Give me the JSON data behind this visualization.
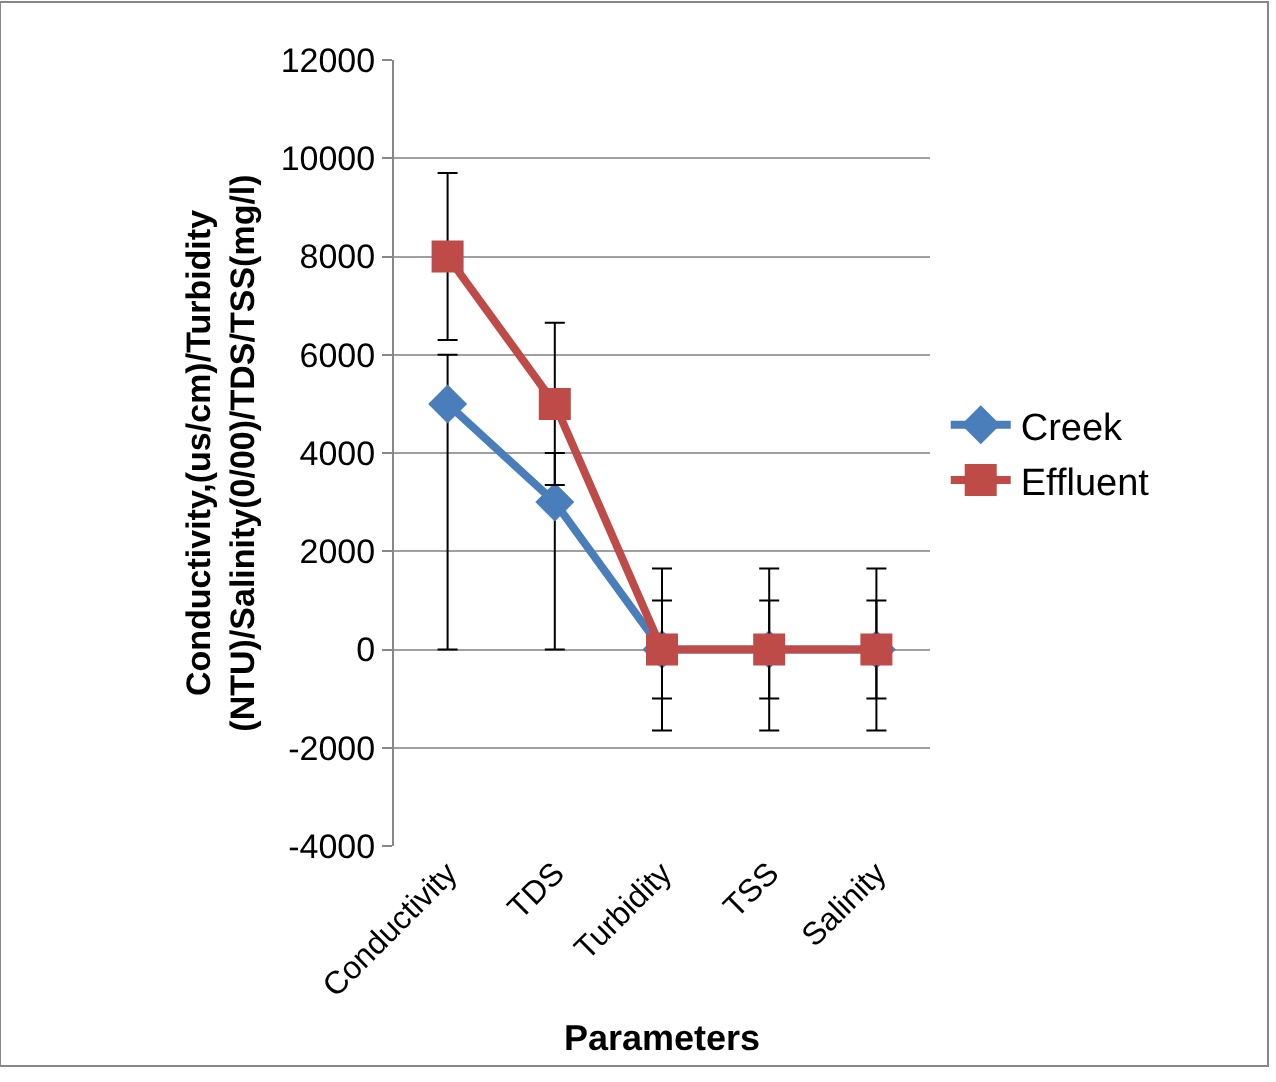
{
  "chart_data": {
    "type": "line",
    "xlabel": "Parameters",
    "ylabel": "Conductivity,(us/cm)/Turbidity\n(NTU)/Salinity(0/00)/TDS/TSS(mg/l)",
    "categories": [
      "Conductivity",
      "TDS",
      "Turbidity",
      "TSS",
      "Salinity"
    ],
    "series": [
      {
        "name": "Creek",
        "color": "#4a7ebb",
        "marker": "diamond",
        "values": [
          5000,
          3000,
          0,
          0,
          0
        ],
        "errors": [
          [
            0,
            6000
          ],
          [
            0,
            4000
          ],
          1000,
          1000,
          1000
        ]
      },
      {
        "name": "Effluent",
        "color": "#be4b48",
        "marker": "square",
        "values": [
          8000,
          5000,
          0,
          0,
          0
        ],
        "errors": [
          1700,
          1650,
          1650,
          1650,
          1650
        ]
      }
    ],
    "ylim": [
      -4000,
      12000
    ],
    "yticks": [
      -4000,
      -2000,
      0,
      2000,
      4000,
      6000,
      8000,
      10000,
      12000
    ],
    "grid": "y",
    "legend": "right"
  }
}
